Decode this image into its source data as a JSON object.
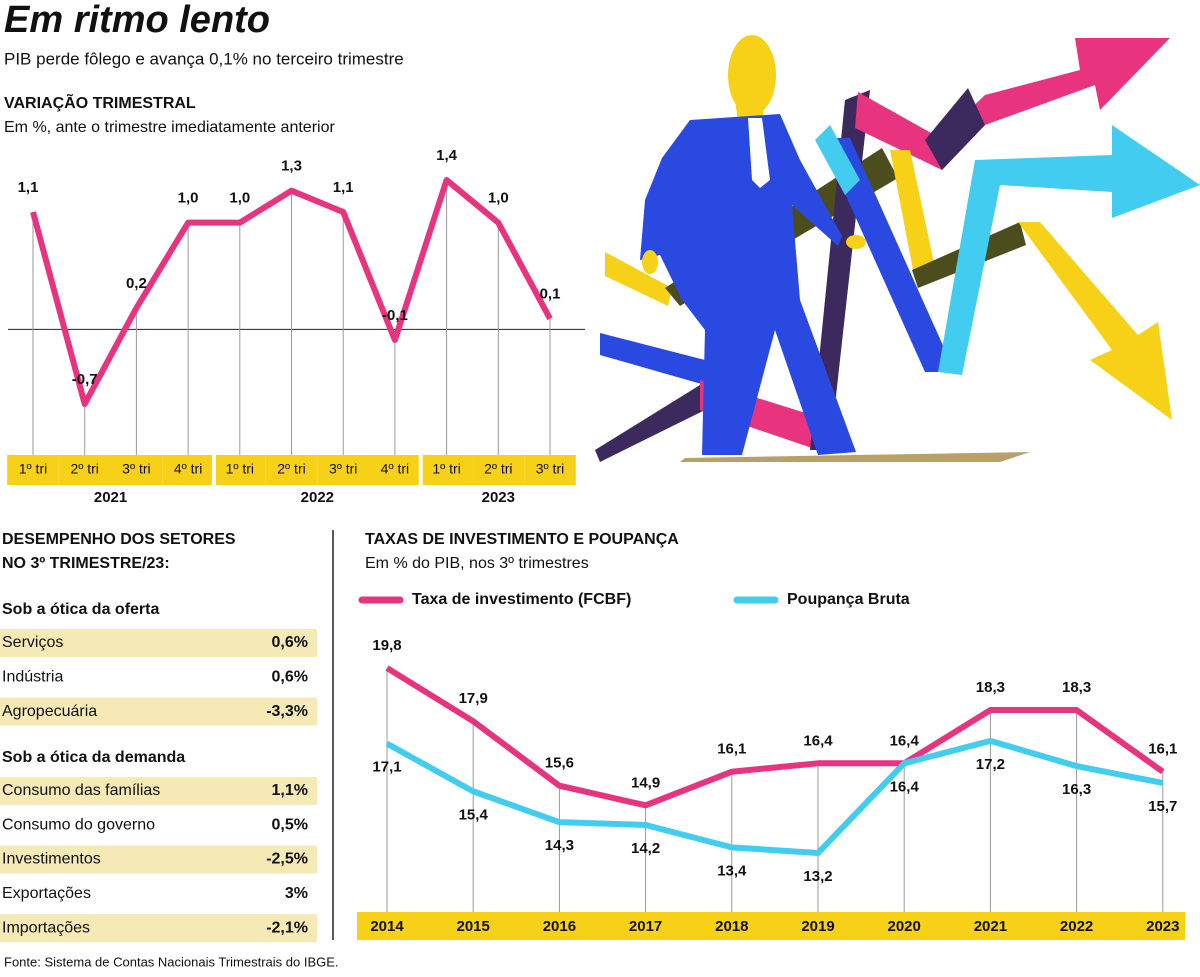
{
  "header": {
    "title": "Em ritmo lento",
    "subtitle": "PIB perde fôlego e avança 0,1% no terceiro trimestre"
  },
  "chart_data": [
    {
      "type": "line",
      "title": "VARIAÇÃO TRIMESTRAL",
      "subtitle": "Em %, ante o trimestre imediatamente anterior",
      "categories": [
        "1º tri",
        "2º tri",
        "3º tri",
        "4º tri",
        "1º tri",
        "2º tri",
        "3º tri",
        "4º tri",
        "1º tri",
        "2º tri",
        "3º tri"
      ],
      "category_groups": [
        "2021",
        "2021",
        "2021",
        "2021",
        "2022",
        "2022",
        "2022",
        "2022",
        "2023",
        "2023",
        "2023"
      ],
      "values": [
        1.1,
        -0.7,
        0.2,
        1.0,
        1.0,
        1.3,
        1.1,
        -0.1,
        1.4,
        1.0,
        0.1
      ],
      "value_labels": [
        "1,1",
        "-0,7",
        "0,2",
        "1,0",
        "1,0",
        "1,3",
        "1,1",
        "-0,1",
        "1,4",
        "1,0",
        "0,1"
      ],
      "color": "#e8337f"
    },
    {
      "type": "line",
      "title": "TAXAS DE INVESTIMENTO E POUPANÇA",
      "subtitle": "Em % do PIB, nos 3º trimestres",
      "categories": [
        "2014",
        "2015",
        "2016",
        "2017",
        "2018",
        "2019",
        "2020",
        "2021",
        "2022",
        "2023"
      ],
      "series": [
        {
          "name": "Taxa de investimento (FCBF)",
          "color": "#e8337f",
          "values": [
            19.8,
            17.9,
            15.6,
            14.9,
            16.1,
            16.4,
            16.4,
            18.3,
            18.3,
            16.1
          ],
          "value_labels": [
            "19,8",
            "17,9",
            "15,6",
            "14,9",
            "16,1",
            "16,4",
            "16,4",
            "18,3",
            "18,3",
            "16,1"
          ]
        },
        {
          "name": "Poupança Bruta",
          "color": "#42cdf0",
          "values": [
            17.1,
            15.4,
            14.3,
            14.2,
            13.4,
            13.2,
            16.4,
            17.2,
            16.3,
            15.7
          ],
          "value_labels": [
            "17,1",
            "15,4",
            "14,3",
            "14,2",
            "13,4",
            "13,2",
            "16,4",
            "17,2",
            "16,3",
            "15,7"
          ]
        }
      ]
    }
  ],
  "sectors": {
    "title_lines": [
      "DESEMPENHO DOS SETORES",
      "NO 3º TRIMESTRE/23:"
    ],
    "sections": [
      {
        "heading": "Sob a ótica da oferta",
        "rows": [
          [
            "Serviços",
            "0,6%"
          ],
          [
            "Indústria",
            "0,6%"
          ],
          [
            "Agropecuária",
            "-3,3%"
          ]
        ]
      },
      {
        "heading": "Sob a ótica da demanda",
        "rows": [
          [
            "Consumo das famílias",
            "1,1%"
          ],
          [
            "Consumo do governo",
            "0,5%"
          ],
          [
            "Investimentos",
            "-2,5%"
          ],
          [
            "Exportações",
            "3%"
          ],
          [
            "Importações",
            "-2,1%"
          ]
        ]
      }
    ]
  },
  "source": "Fonte:  Sistema de Contas Nacionais Trimestrais do IBGE."
}
